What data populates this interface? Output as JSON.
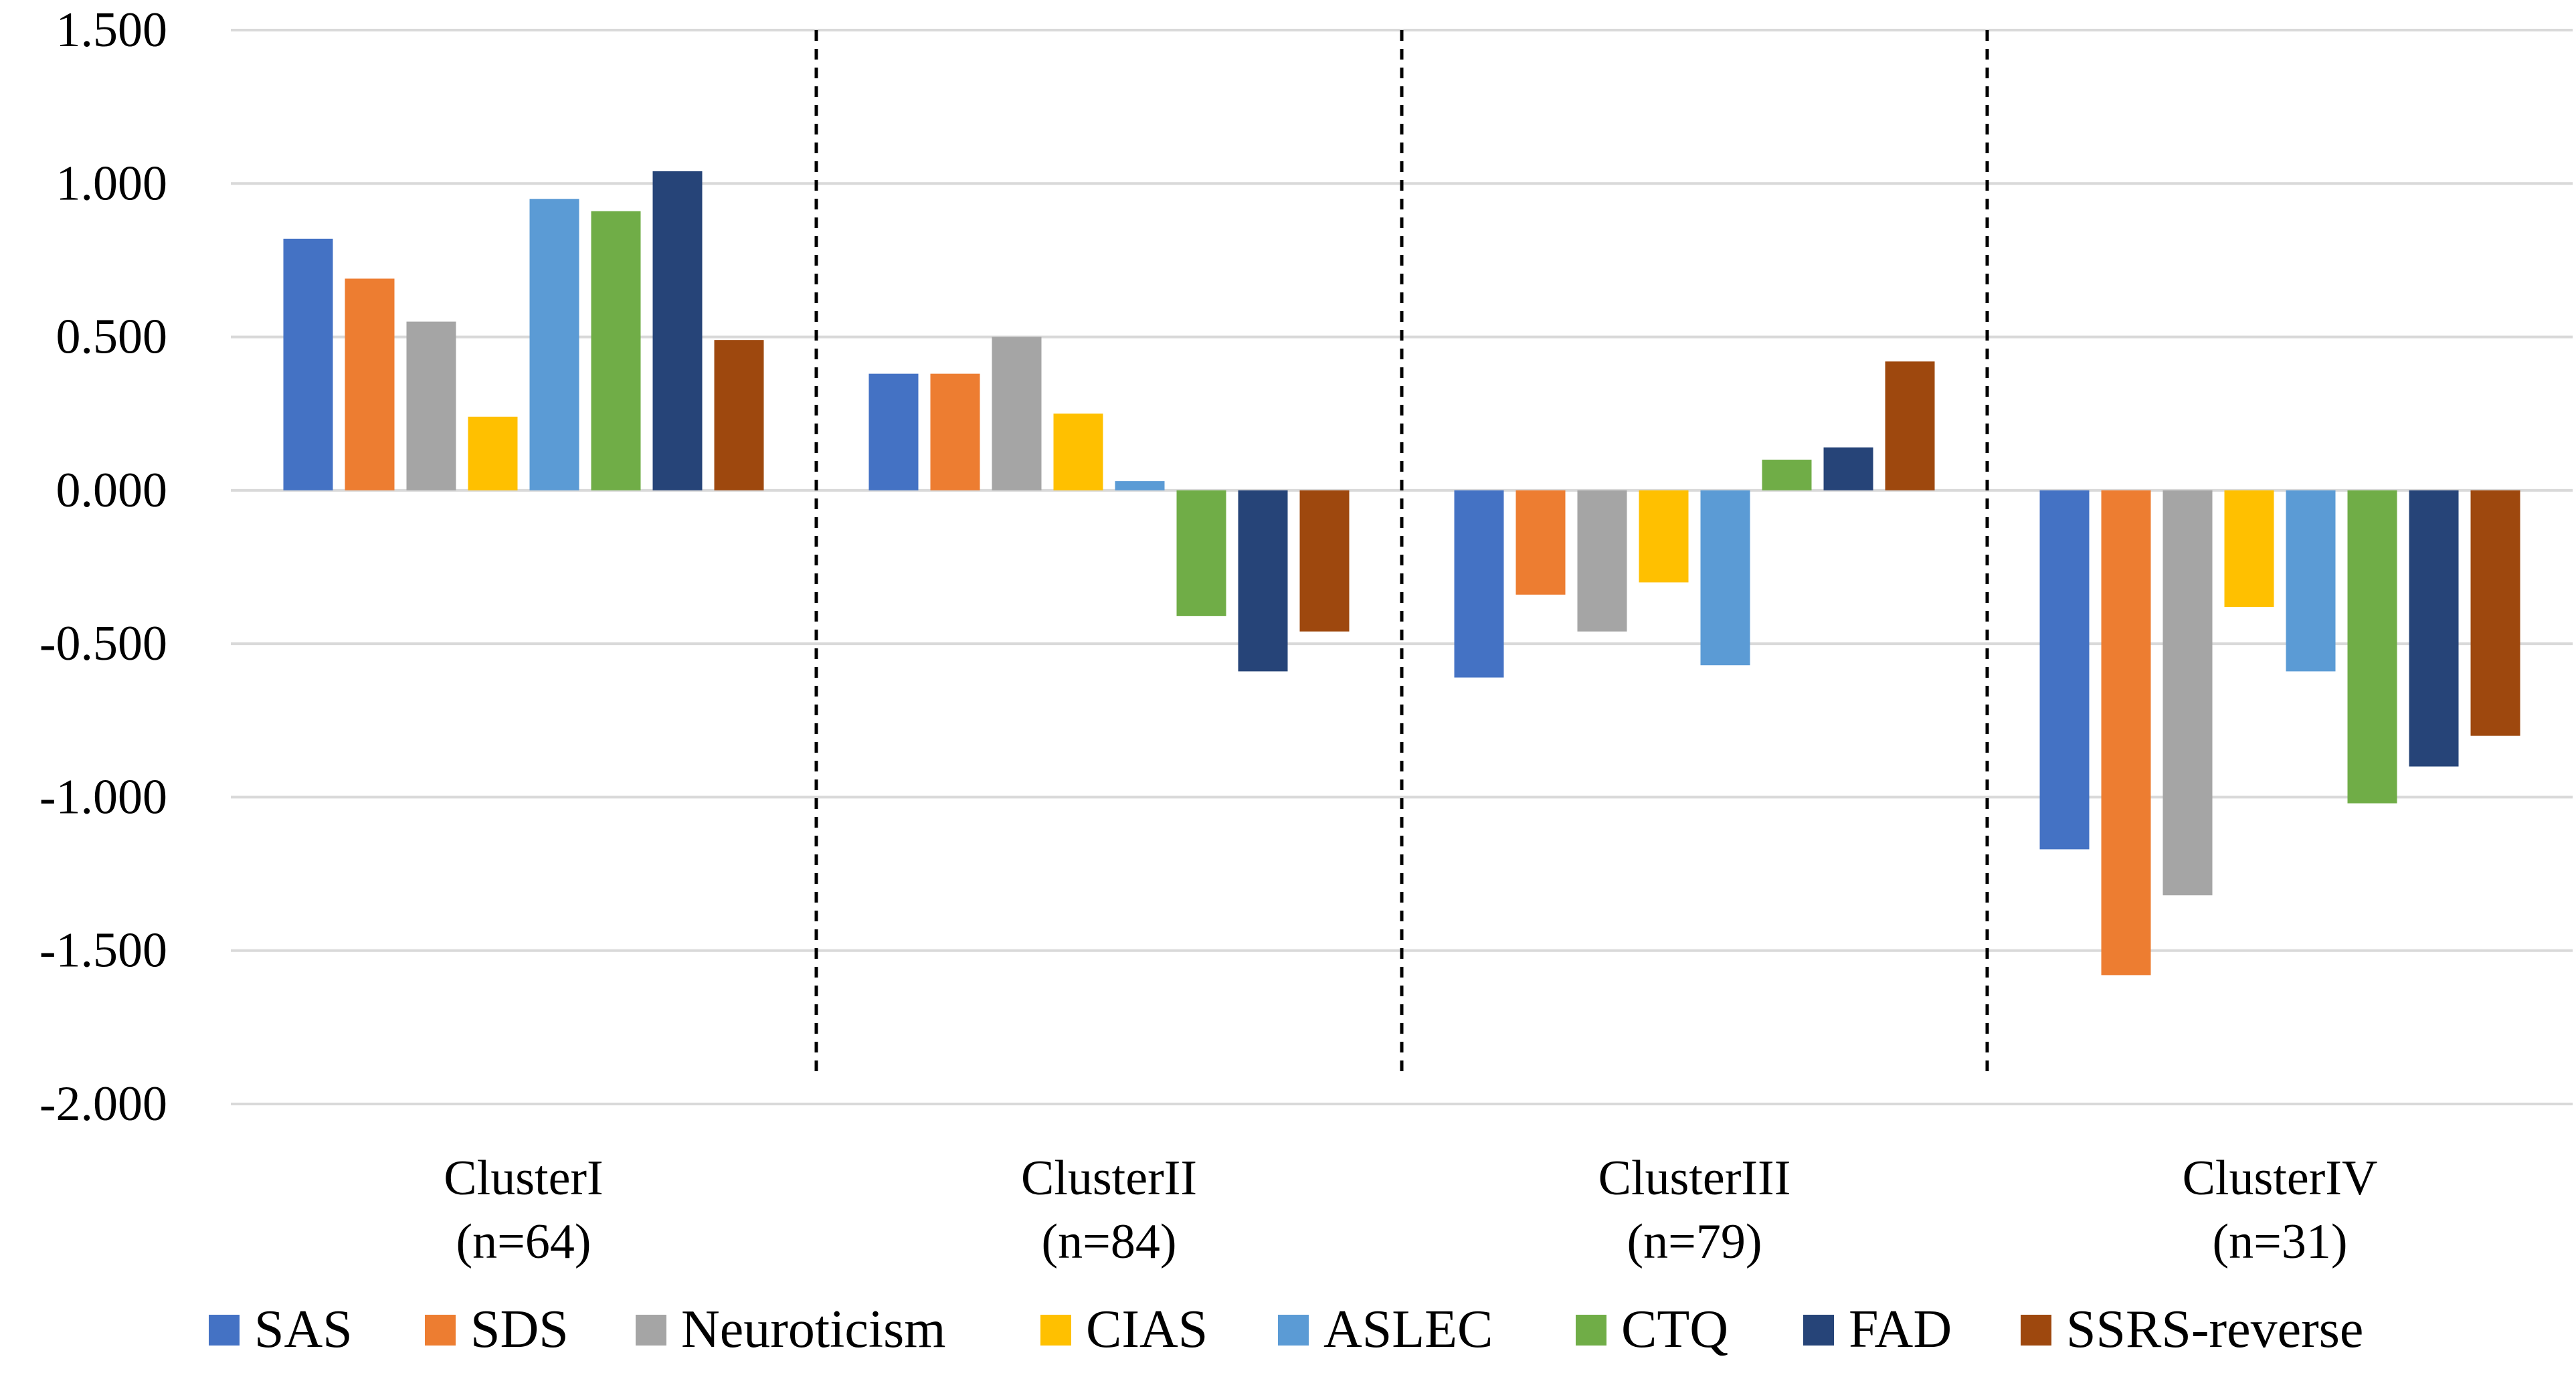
{
  "chart_data": {
    "type": "bar",
    "title": "",
    "xlabel": "",
    "ylabel": "",
    "ylim": [
      -2.0,
      1.5
    ],
    "yticks": [
      1.5,
      1.0,
      0.5,
      0.0,
      -0.5,
      -1.0,
      -1.5,
      -2.0
    ],
    "ytick_labels": [
      "1.500",
      "1.000",
      "0.500",
      "0.000",
      "-0.500",
      "-1.000",
      "-1.500",
      "-2.000"
    ],
    "grid": true,
    "legend_position": "bottom",
    "categories": [
      {
        "name": "ClusterI",
        "n": "(n=64)"
      },
      {
        "name": "ClusterII",
        "n": "(n=84)"
      },
      {
        "name": "ClusterIII",
        "n": "(n=79)"
      },
      {
        "name": "ClusterIV",
        "n": "(n=31)"
      }
    ],
    "series": [
      {
        "name": "SAS",
        "color": "#4472C4",
        "values": [
          0.82,
          0.38,
          -0.61,
          -1.17
        ]
      },
      {
        "name": "SDS",
        "color": "#ED7D31",
        "values": [
          0.69,
          0.38,
          -0.34,
          -1.58
        ]
      },
      {
        "name": "Neuroticism",
        "color": "#A5A5A5",
        "values": [
          0.55,
          0.5,
          -0.46,
          -1.32
        ]
      },
      {
        "name": "CIAS",
        "color": "#FFC000",
        "values": [
          0.24,
          0.25,
          -0.3,
          -0.38
        ]
      },
      {
        "name": "ASLEC",
        "color": "#5B9BD5",
        "values": [
          0.95,
          0.03,
          -0.57,
          -0.59
        ]
      },
      {
        "name": "CTQ",
        "color": "#70AD47",
        "values": [
          0.91,
          -0.41,
          0.1,
          -1.02
        ]
      },
      {
        "name": "FAD",
        "color": "#264478",
        "values": [
          1.04,
          -0.59,
          0.14,
          -0.9
        ]
      },
      {
        "name": "SSRS-reverse",
        "color": "#9E480E",
        "values": [
          0.49,
          -0.46,
          0.42,
          -0.8
        ]
      }
    ],
    "separators": "dashed lines between clusters"
  }
}
